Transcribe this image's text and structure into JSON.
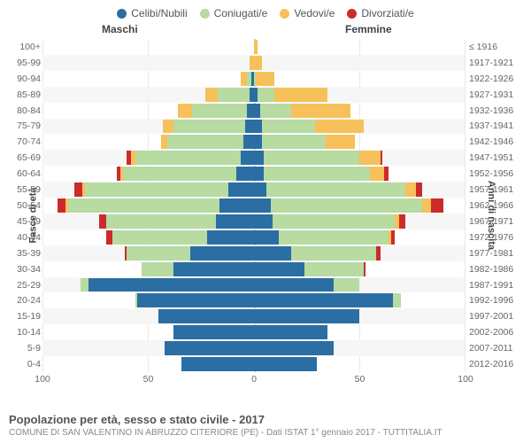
{
  "legend": [
    {
      "label": "Celibi/Nubili",
      "color": "#2b6ea3"
    },
    {
      "label": "Coniugati/e",
      "color": "#b7dba0"
    },
    {
      "label": "Vedovi/e",
      "color": "#f6c15a"
    },
    {
      "label": "Divorziati/e",
      "color": "#cc2b2b"
    }
  ],
  "header_male": "Maschi",
  "header_female": "Femmine",
  "ylabel_left": "Fasce di età",
  "ylabel_right": "Anni di nascita",
  "xmax": 100,
  "xticks": [
    100,
    50,
    0,
    50,
    100
  ],
  "footer_title": "Popolazione per età, sesso e stato civile - 2017",
  "footer_sub": "COMUNE DI SAN VALENTINO IN ABRUZZO CITERIORE (PE) - Dati ISTAT 1° gennaio 2017 - TUTTITALIA.IT",
  "colors": {
    "cel": "#2b6ea3",
    "con": "#b7dba0",
    "ved": "#f6c15a",
    "div": "#cc2b2b"
  },
  "rows": [
    {
      "age": "100+",
      "birth": "≤ 1916",
      "m": {
        "cel": 0,
        "con": 0,
        "ved": 0,
        "div": 0
      },
      "f": {
        "cel": 0,
        "con": 0,
        "ved": 2,
        "div": 0
      }
    },
    {
      "age": "95-99",
      "birth": "1917-1921",
      "m": {
        "cel": 0,
        "con": 0,
        "ved": 2,
        "div": 0
      },
      "f": {
        "cel": 0,
        "con": 0,
        "ved": 4,
        "div": 0
      }
    },
    {
      "age": "90-94",
      "birth": "1922-1926",
      "m": {
        "cel": 1,
        "con": 2,
        "ved": 3,
        "div": 0
      },
      "f": {
        "cel": 0,
        "con": 1,
        "ved": 9,
        "div": 0
      }
    },
    {
      "age": "85-89",
      "birth": "1927-1931",
      "m": {
        "cel": 2,
        "con": 15,
        "ved": 6,
        "div": 0
      },
      "f": {
        "cel": 2,
        "con": 8,
        "ved": 25,
        "div": 0
      }
    },
    {
      "age": "80-84",
      "birth": "1932-1936",
      "m": {
        "cel": 3,
        "con": 26,
        "ved": 7,
        "div": 0
      },
      "f": {
        "cel": 3,
        "con": 15,
        "ved": 28,
        "div": 0
      }
    },
    {
      "age": "75-79",
      "birth": "1937-1941",
      "m": {
        "cel": 4,
        "con": 34,
        "ved": 5,
        "div": 0
      },
      "f": {
        "cel": 4,
        "con": 25,
        "ved": 23,
        "div": 0
      }
    },
    {
      "age": "70-74",
      "birth": "1942-1946",
      "m": {
        "cel": 5,
        "con": 36,
        "ved": 3,
        "div": 0
      },
      "f": {
        "cel": 4,
        "con": 30,
        "ved": 14,
        "div": 0
      }
    },
    {
      "age": "65-69",
      "birth": "1947-1951",
      "m": {
        "cel": 6,
        "con": 50,
        "ved": 2,
        "div": 2
      },
      "f": {
        "cel": 5,
        "con": 45,
        "ved": 10,
        "div": 1
      }
    },
    {
      "age": "60-64",
      "birth": "1952-1956",
      "m": {
        "cel": 8,
        "con": 54,
        "ved": 1,
        "div": 2
      },
      "f": {
        "cel": 5,
        "con": 50,
        "ved": 7,
        "div": 2
      }
    },
    {
      "age": "55-59",
      "birth": "1957-1961",
      "m": {
        "cel": 12,
        "con": 68,
        "ved": 1,
        "div": 4
      },
      "f": {
        "cel": 6,
        "con": 66,
        "ved": 5,
        "div": 3
      }
    },
    {
      "age": "50-54",
      "birth": "1962-1966",
      "m": {
        "cel": 16,
        "con": 72,
        "ved": 1,
        "div": 4
      },
      "f": {
        "cel": 8,
        "con": 72,
        "ved": 4,
        "div": 6
      }
    },
    {
      "age": "45-49",
      "birth": "1967-1971",
      "m": {
        "cel": 18,
        "con": 52,
        "ved": 0,
        "div": 3
      },
      "f": {
        "cel": 9,
        "con": 58,
        "ved": 2,
        "div": 3
      }
    },
    {
      "age": "40-44",
      "birth": "1972-1976",
      "m": {
        "cel": 22,
        "con": 45,
        "ved": 0,
        "div": 3
      },
      "f": {
        "cel": 12,
        "con": 52,
        "ved": 1,
        "div": 2
      }
    },
    {
      "age": "35-39",
      "birth": "1977-1981",
      "m": {
        "cel": 30,
        "con": 30,
        "ved": 0,
        "div": 1
      },
      "f": {
        "cel": 18,
        "con": 40,
        "ved": 0,
        "div": 2
      }
    },
    {
      "age": "30-34",
      "birth": "1982-1986",
      "m": {
        "cel": 38,
        "con": 15,
        "ved": 0,
        "div": 0
      },
      "f": {
        "cel": 24,
        "con": 28,
        "ved": 0,
        "div": 1
      }
    },
    {
      "age": "25-29",
      "birth": "1987-1991",
      "m": {
        "cel": 78,
        "con": 4,
        "ved": 0,
        "div": 0
      },
      "f": {
        "cel": 38,
        "con": 12,
        "ved": 0,
        "div": 0
      }
    },
    {
      "age": "20-24",
      "birth": "1992-1996",
      "m": {
        "cel": 55,
        "con": 1,
        "ved": 0,
        "div": 0
      },
      "f": {
        "cel": 66,
        "con": 4,
        "ved": 0,
        "div": 0
      }
    },
    {
      "age": "15-19",
      "birth": "1997-2001",
      "m": {
        "cel": 45,
        "con": 0,
        "ved": 0,
        "div": 0
      },
      "f": {
        "cel": 50,
        "con": 0,
        "ved": 0,
        "div": 0
      }
    },
    {
      "age": "10-14",
      "birth": "2002-2006",
      "m": {
        "cel": 38,
        "con": 0,
        "ved": 0,
        "div": 0
      },
      "f": {
        "cel": 35,
        "con": 0,
        "ved": 0,
        "div": 0
      }
    },
    {
      "age": "5-9",
      "birth": "2007-2011",
      "m": {
        "cel": 42,
        "con": 0,
        "ved": 0,
        "div": 0
      },
      "f": {
        "cel": 38,
        "con": 0,
        "ved": 0,
        "div": 0
      }
    },
    {
      "age": "0-4",
      "birth": "2012-2016",
      "m": {
        "cel": 34,
        "con": 0,
        "ved": 0,
        "div": 0
      },
      "f": {
        "cel": 30,
        "con": 0,
        "ved": 0,
        "div": 0
      }
    }
  ]
}
